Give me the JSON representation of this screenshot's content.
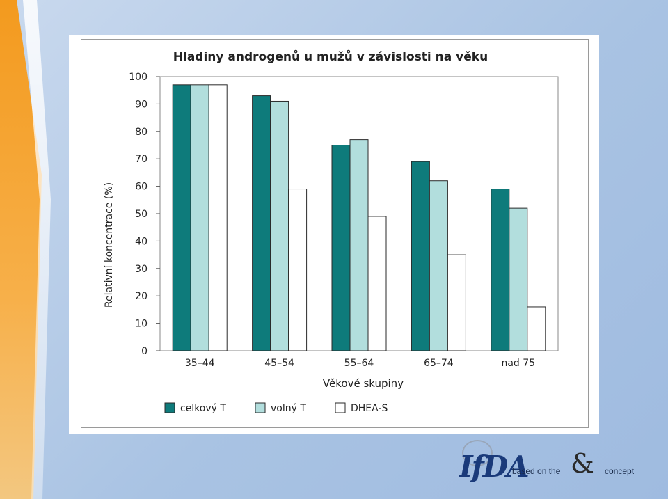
{
  "chart_data": {
    "type": "bar",
    "title": "Hladiny androgenů u mužů v závislosti na věku",
    "xlabel": "Věkové skupiny",
    "ylabel": "Relativní koncentrace (%)",
    "ylim": [
      0,
      100
    ],
    "yticks": [
      0,
      10,
      20,
      30,
      40,
      50,
      60,
      70,
      80,
      90,
      100
    ],
    "categories": [
      "35–44",
      "45–54",
      "55–64",
      "65–74",
      "nad 75"
    ],
    "series": [
      {
        "name": "celkový T",
        "color": "#0e7b7b",
        "values": [
          97,
          93,
          75,
          69,
          59
        ]
      },
      {
        "name": "volný T",
        "color": "#b2dedd",
        "values": [
          97,
          91,
          77,
          62,
          52
        ]
      },
      {
        "name": "DHEA-S",
        "color": "#ffffff",
        "values": [
          97,
          59,
          49,
          35,
          16
        ]
      }
    ],
    "grid": false,
    "legend_position": "bottom-left"
  },
  "footer": {
    "logo_text": "IfDA",
    "based_on": "based on the",
    "concept": "concept",
    "amp_glyph": "&",
    "globe_icon": "globe-icon"
  }
}
